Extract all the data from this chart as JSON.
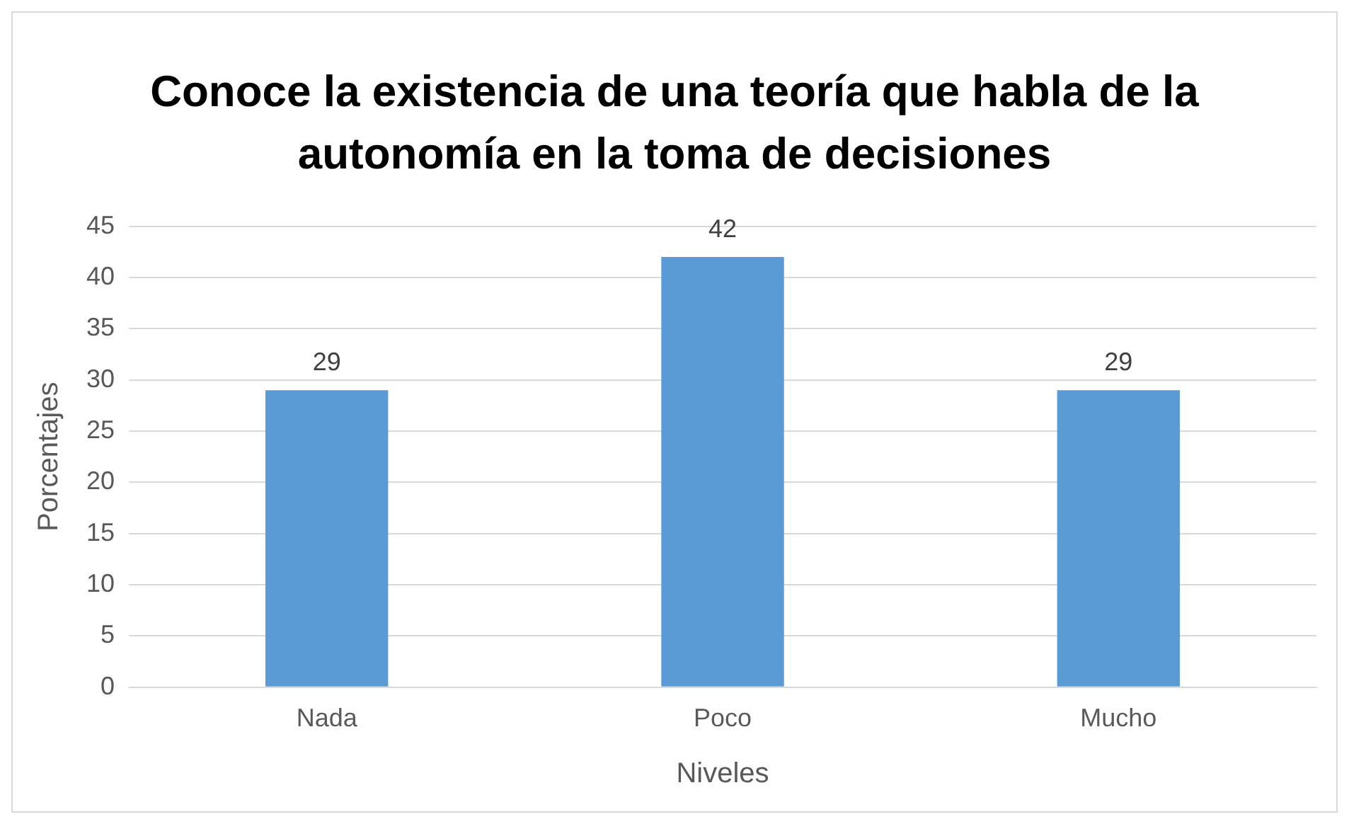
{
  "chart_data": {
    "type": "bar",
    "title": "Conoce la existencia de una teoría que habla de la autonomía en la toma de decisiones",
    "xlabel": "Niveles",
    "ylabel": "Porcentajes",
    "categories": [
      "Nada",
      "Poco",
      "Mucho"
    ],
    "values": [
      29,
      42,
      29
    ],
    "color": "#5b9bd5",
    "ylim": [
      0,
      45
    ],
    "yticks": [
      0,
      5,
      10,
      15,
      20,
      25,
      30,
      35,
      40,
      45
    ],
    "grid": "y",
    "data_labels": true
  }
}
